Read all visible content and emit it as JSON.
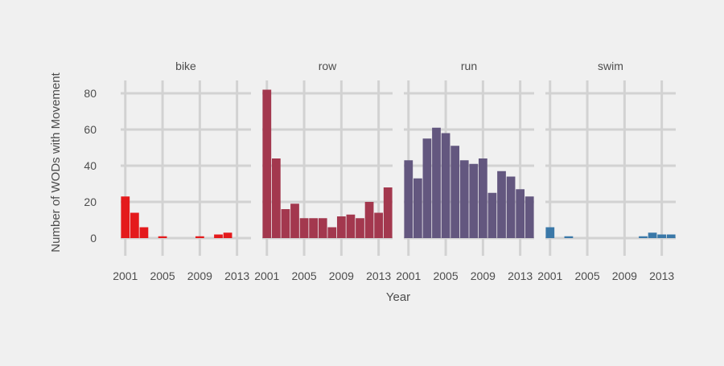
{
  "chart_data": {
    "type": "bar",
    "xlabel": "Year",
    "ylabel": "Number of WODs with Movement",
    "ylim": [
      -5,
      90
    ],
    "yticks": [
      0,
      20,
      40,
      60,
      80
    ],
    "xlim": [
      2000.5,
      2014.5
    ],
    "xticks": [
      2001,
      2005,
      2009,
      2013
    ],
    "grid": true,
    "years": [
      2001,
      2002,
      2003,
      2004,
      2005,
      2006,
      2007,
      2008,
      2009,
      2010,
      2011,
      2012,
      2013,
      2014
    ],
    "facets": [
      {
        "name": "bike",
        "color": "#e41a1c",
        "values": [
          23,
          14,
          6,
          0,
          1,
          0,
          0,
          0,
          1,
          0,
          2,
          3,
          0,
          0
        ]
      },
      {
        "name": "row",
        "color": "#a3384e",
        "values": [
          82,
          44,
          16,
          19,
          11,
          11,
          11,
          6,
          12,
          13,
          11,
          20,
          14,
          28
        ]
      },
      {
        "name": "run",
        "color": "#63577f",
        "values": [
          43,
          33,
          55,
          61,
          58,
          51,
          43,
          41,
          44,
          25,
          37,
          34,
          27,
          23
        ]
      },
      {
        "name": "swim",
        "color": "#3a78a8",
        "values": [
          6,
          0,
          1,
          0,
          0,
          0,
          0,
          0,
          0,
          0,
          1,
          3,
          2,
          2
        ]
      }
    ]
  }
}
